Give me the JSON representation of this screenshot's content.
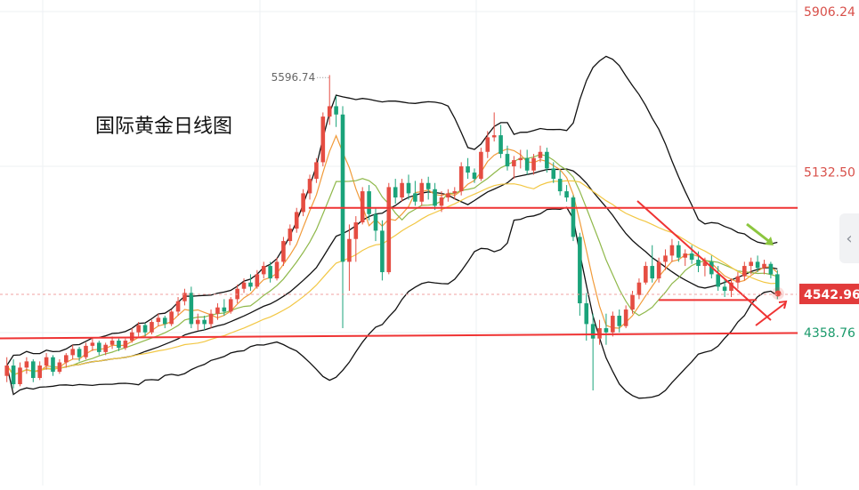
{
  "title": "国际黄金日线图",
  "nav_arrow_glyph": "‹",
  "chart_data": {
    "type": "candlestick",
    "ylim": [
      4000,
      6000
    ],
    "grid": true,
    "price_labels": [
      {
        "value": 5906.24,
        "text": "5906.24",
        "color": "#d8504a"
      },
      {
        "value": 5132.5,
        "text": "5132.50",
        "color": "#d8504a"
      },
      {
        "value": 4358.76,
        "text": "4358.76",
        "color": "#1a9a6b"
      }
    ],
    "current_price": {
      "value": 4542.96,
      "text": "4542.96",
      "color": "#e23b3b"
    },
    "high_annotation": {
      "value": 5596.74,
      "text": "5596.74"
    },
    "horizontal_lines": [
      {
        "value": 4960,
        "x_from": 60,
        "x_to": 155,
        "color": "#ef3333"
      },
      {
        "value": 4331,
        "x_from": 0,
        "x_to": 155,
        "color": "#ef3333"
      },
      {
        "value": 4516,
        "x_from": 128,
        "x_to": 147,
        "color": "#ef3333"
      }
    ],
    "candles": [
      {
        "o": 4150,
        "h": 4240,
        "l": 4120,
        "c": 4200
      },
      {
        "o": 4200,
        "h": 4230,
        "l": 4090,
        "c": 4110
      },
      {
        "o": 4110,
        "h": 4215,
        "l": 4100,
        "c": 4190
      },
      {
        "o": 4190,
        "h": 4240,
        "l": 4160,
        "c": 4220
      },
      {
        "o": 4220,
        "h": 4230,
        "l": 4120,
        "c": 4140
      },
      {
        "o": 4140,
        "h": 4220,
        "l": 4130,
        "c": 4200
      },
      {
        "o": 4200,
        "h": 4260,
        "l": 4180,
        "c": 4240
      },
      {
        "o": 4240,
        "h": 4250,
        "l": 4150,
        "c": 4170
      },
      {
        "o": 4170,
        "h": 4230,
        "l": 4160,
        "c": 4215
      },
      {
        "o": 4215,
        "h": 4260,
        "l": 4190,
        "c": 4250
      },
      {
        "o": 4250,
        "h": 4300,
        "l": 4230,
        "c": 4280
      },
      {
        "o": 4280,
        "h": 4290,
        "l": 4220,
        "c": 4240
      },
      {
        "o": 4240,
        "h": 4310,
        "l": 4230,
        "c": 4295
      },
      {
        "o": 4295,
        "h": 4330,
        "l": 4270,
        "c": 4310
      },
      {
        "o": 4310,
        "h": 4320,
        "l": 4250,
        "c": 4265
      },
      {
        "o": 4265,
        "h": 4310,
        "l": 4250,
        "c": 4300
      },
      {
        "o": 4300,
        "h": 4340,
        "l": 4280,
        "c": 4320
      },
      {
        "o": 4320,
        "h": 4330,
        "l": 4270,
        "c": 4285
      },
      {
        "o": 4285,
        "h": 4330,
        "l": 4275,
        "c": 4320
      },
      {
        "o": 4320,
        "h": 4380,
        "l": 4310,
        "c": 4360
      },
      {
        "o": 4360,
        "h": 4410,
        "l": 4340,
        "c": 4395
      },
      {
        "o": 4395,
        "h": 4405,
        "l": 4340,
        "c": 4360
      },
      {
        "o": 4360,
        "h": 4420,
        "l": 4350,
        "c": 4410
      },
      {
        "o": 4410,
        "h": 4450,
        "l": 4390,
        "c": 4430
      },
      {
        "o": 4430,
        "h": 4440,
        "l": 4380,
        "c": 4400
      },
      {
        "o": 4400,
        "h": 4470,
        "l": 4390,
        "c": 4460
      },
      {
        "o": 4460,
        "h": 4530,
        "l": 4440,
        "c": 4510
      },
      {
        "o": 4510,
        "h": 4570,
        "l": 4490,
        "c": 4550
      },
      {
        "o": 4550,
        "h": 4580,
        "l": 4380,
        "c": 4400
      },
      {
        "o": 4400,
        "h": 4450,
        "l": 4370,
        "c": 4420
      },
      {
        "o": 4420,
        "h": 4440,
        "l": 4370,
        "c": 4400
      },
      {
        "o": 4400,
        "h": 4470,
        "l": 4380,
        "c": 4450
      },
      {
        "o": 4450,
        "h": 4500,
        "l": 4420,
        "c": 4480
      },
      {
        "o": 4480,
        "h": 4520,
        "l": 4440,
        "c": 4460
      },
      {
        "o": 4460,
        "h": 4530,
        "l": 4450,
        "c": 4520
      },
      {
        "o": 4520,
        "h": 4590,
        "l": 4500,
        "c": 4570
      },
      {
        "o": 4570,
        "h": 4620,
        "l": 4550,
        "c": 4600
      },
      {
        "o": 4600,
        "h": 4640,
        "l": 4560,
        "c": 4580
      },
      {
        "o": 4580,
        "h": 4660,
        "l": 4570,
        "c": 4640
      },
      {
        "o": 4640,
        "h": 4700,
        "l": 4620,
        "c": 4680
      },
      {
        "o": 4680,
        "h": 4700,
        "l": 4600,
        "c": 4620
      },
      {
        "o": 4620,
        "h": 4720,
        "l": 4610,
        "c": 4700
      },
      {
        "o": 4700,
        "h": 4820,
        "l": 4680,
        "c": 4800
      },
      {
        "o": 4800,
        "h": 4880,
        "l": 4780,
        "c": 4860
      },
      {
        "o": 4860,
        "h": 4960,
        "l": 4840,
        "c": 4940
      },
      {
        "o": 4940,
        "h": 5050,
        "l": 4920,
        "c": 5030
      },
      {
        "o": 5030,
        "h": 5120,
        "l": 5000,
        "c": 5100
      },
      {
        "o": 5100,
        "h": 5200,
        "l": 5080,
        "c": 5180
      },
      {
        "o": 5180,
        "h": 5420,
        "l": 5160,
        "c": 5400
      },
      {
        "o": 5400,
        "h": 5600,
        "l": 5360,
        "c": 5450
      },
      {
        "o": 5450,
        "h": 5500,
        "l": 5350,
        "c": 5410
      },
      {
        "o": 5410,
        "h": 5450,
        "l": 4380,
        "c": 4700
      },
      {
        "o": 4700,
        "h": 4880,
        "l": 4560,
        "c": 4810
      },
      {
        "o": 4810,
        "h": 4920,
        "l": 4700,
        "c": 4890
      },
      {
        "o": 4890,
        "h": 5060,
        "l": 4880,
        "c": 5040
      },
      {
        "o": 5040,
        "h": 5070,
        "l": 4900,
        "c": 4930
      },
      {
        "o": 4930,
        "h": 4960,
        "l": 4800,
        "c": 4850
      },
      {
        "o": 4850,
        "h": 4900,
        "l": 4610,
        "c": 4650
      },
      {
        "o": 4650,
        "h": 5080,
        "l": 4640,
        "c": 5060
      },
      {
        "o": 5060,
        "h": 5100,
        "l": 4980,
        "c": 5010
      },
      {
        "o": 5010,
        "h": 5100,
        "l": 4990,
        "c": 5080
      },
      {
        "o": 5080,
        "h": 5120,
        "l": 5000,
        "c": 5030
      },
      {
        "o": 5030,
        "h": 5090,
        "l": 4970,
        "c": 4990
      },
      {
        "o": 4990,
        "h": 5100,
        "l": 4970,
        "c": 5080
      },
      {
        "o": 5080,
        "h": 5110,
        "l": 5000,
        "c": 5050
      },
      {
        "o": 5050,
        "h": 5080,
        "l": 4950,
        "c": 4970
      },
      {
        "o": 4970,
        "h": 5040,
        "l": 4940,
        "c": 5010
      },
      {
        "o": 5010,
        "h": 5050,
        "l": 4990,
        "c": 5030
      },
      {
        "o": 5030,
        "h": 5060,
        "l": 5000,
        "c": 5040
      },
      {
        "o": 5040,
        "h": 5180,
        "l": 5020,
        "c": 5160
      },
      {
        "o": 5160,
        "h": 5200,
        "l": 5100,
        "c": 5130
      },
      {
        "o": 5130,
        "h": 5150,
        "l": 5080,
        "c": 5100
      },
      {
        "o": 5100,
        "h": 5250,
        "l": 5090,
        "c": 5230
      },
      {
        "o": 5230,
        "h": 5330,
        "l": 5200,
        "c": 5300
      },
      {
        "o": 5300,
        "h": 5420,
        "l": 5280,
        "c": 5310
      },
      {
        "o": 5310,
        "h": 5360,
        "l": 5200,
        "c": 5220
      },
      {
        "o": 5220,
        "h": 5260,
        "l": 5140,
        "c": 5160
      },
      {
        "o": 5160,
        "h": 5210,
        "l": 5100,
        "c": 5190
      },
      {
        "o": 5190,
        "h": 5240,
        "l": 5150,
        "c": 5200
      },
      {
        "o": 5200,
        "h": 5240,
        "l": 5120,
        "c": 5140
      },
      {
        "o": 5140,
        "h": 5220,
        "l": 5120,
        "c": 5200
      },
      {
        "o": 5200,
        "h": 5260,
        "l": 5180,
        "c": 5230
      },
      {
        "o": 5230,
        "h": 5250,
        "l": 5130,
        "c": 5150
      },
      {
        "o": 5150,
        "h": 5180,
        "l": 5080,
        "c": 5100
      },
      {
        "o": 5100,
        "h": 5140,
        "l": 5020,
        "c": 5040
      },
      {
        "o": 5040,
        "h": 5070,
        "l": 4990,
        "c": 5010
      },
      {
        "o": 5010,
        "h": 5020,
        "l": 4800,
        "c": 4820
      },
      {
        "o": 4820,
        "h": 4840,
        "l": 4440,
        "c": 4500
      },
      {
        "o": 4500,
        "h": 4550,
        "l": 4320,
        "c": 4400
      },
      {
        "o": 4400,
        "h": 4450,
        "l": 4080,
        "c": 4330
      },
      {
        "o": 4330,
        "h": 4420,
        "l": 4300,
        "c": 4380
      },
      {
        "o": 4380,
        "h": 4450,
        "l": 4300,
        "c": 4360
      },
      {
        "o": 4360,
        "h": 4460,
        "l": 4340,
        "c": 4440
      },
      {
        "o": 4440,
        "h": 4470,
        "l": 4360,
        "c": 4390
      },
      {
        "o": 4390,
        "h": 4490,
        "l": 4380,
        "c": 4470
      },
      {
        "o": 4470,
        "h": 4560,
        "l": 4450,
        "c": 4540
      },
      {
        "o": 4540,
        "h": 4620,
        "l": 4520,
        "c": 4600
      },
      {
        "o": 4600,
        "h": 4700,
        "l": 4590,
        "c": 4680
      },
      {
        "o": 4680,
        "h": 4780,
        "l": 4600,
        "c": 4620
      },
      {
        "o": 4620,
        "h": 4720,
        "l": 4600,
        "c": 4700
      },
      {
        "o": 4700,
        "h": 4760,
        "l": 4660,
        "c": 4730
      },
      {
        "o": 4730,
        "h": 4810,
        "l": 4700,
        "c": 4780
      },
      {
        "o": 4780,
        "h": 4800,
        "l": 4700,
        "c": 4720
      },
      {
        "o": 4720,
        "h": 4760,
        "l": 4680,
        "c": 4740
      },
      {
        "o": 4740,
        "h": 4780,
        "l": 4690,
        "c": 4710
      },
      {
        "o": 4710,
        "h": 4750,
        "l": 4650,
        "c": 4680
      },
      {
        "o": 4680,
        "h": 4720,
        "l": 4630,
        "c": 4700
      },
      {
        "o": 4700,
        "h": 4730,
        "l": 4620,
        "c": 4640
      },
      {
        "o": 4640,
        "h": 4680,
        "l": 4560,
        "c": 4580
      },
      {
        "o": 4580,
        "h": 4620,
        "l": 4530,
        "c": 4560
      },
      {
        "o": 4560,
        "h": 4620,
        "l": 4530,
        "c": 4600
      },
      {
        "o": 4600,
        "h": 4650,
        "l": 4570,
        "c": 4630
      },
      {
        "o": 4630,
        "h": 4700,
        "l": 4610,
        "c": 4680
      },
      {
        "o": 4680,
        "h": 4720,
        "l": 4640,
        "c": 4700
      },
      {
        "o": 4700,
        "h": 4730,
        "l": 4650,
        "c": 4670
      },
      {
        "o": 4670,
        "h": 4710,
        "l": 4640,
        "c": 4690
      },
      {
        "o": 4690,
        "h": 4700,
        "l": 4620,
        "c": 4640
      },
      {
        "o": 4640,
        "h": 4660,
        "l": 4520,
        "c": 4543
      }
    ]
  }
}
